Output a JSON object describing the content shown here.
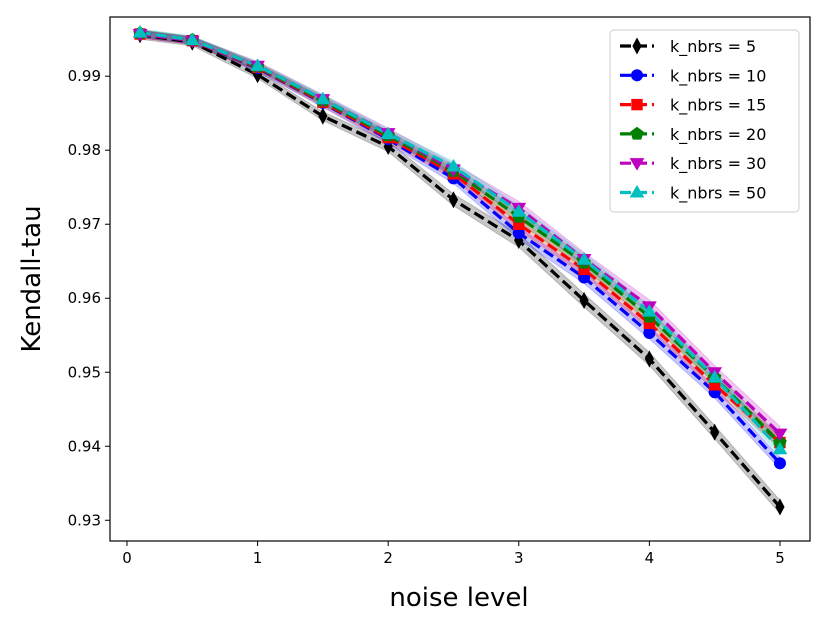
{
  "chart_data": {
    "type": "line",
    "title": "",
    "xlabel": "noise level",
    "ylabel": "Kendall-tau",
    "x": [
      0.1,
      0.5,
      1.0,
      1.5,
      2.0,
      2.5,
      3.0,
      3.5,
      4.0,
      4.5,
      5.0
    ],
    "xlim": [
      -0.13,
      5.23
    ],
    "ylim": [
      0.9272,
      0.998
    ],
    "xticks": [
      0,
      1,
      2,
      3,
      4,
      5
    ],
    "xtick_labels": [
      "0",
      "1",
      "2",
      "3",
      "4",
      "5"
    ],
    "yticks": [
      0.93,
      0.94,
      0.95,
      0.96,
      0.97,
      0.98,
      0.99
    ],
    "ytick_labels": [
      "0.93",
      "0.94",
      "0.95",
      "0.96",
      "0.97",
      "0.98",
      "0.99"
    ],
    "grid": false,
    "legend_position": "top-right",
    "series": [
      {
        "name": "k_nbrs = 5",
        "color": "#000000",
        "marker": "diamond",
        "values": [
          0.9956,
          0.9946,
          0.9902,
          0.9846,
          0.9805,
          0.9733,
          0.9678,
          0.9597,
          0.9518,
          0.9419,
          0.9318
        ],
        "band": [
          0.0006,
          0.0005,
          0.0005,
          0.0006,
          0.0007,
          0.0008,
          0.0009,
          0.0009,
          0.0009,
          0.0009,
          0.0009
        ]
      },
      {
        "name": "k_nbrs = 10",
        "color": "#0000ff",
        "marker": "circle",
        "values": [
          0.9957,
          0.9948,
          0.9911,
          0.9864,
          0.9815,
          0.9762,
          0.9688,
          0.9628,
          0.9553,
          0.9473,
          0.9377
        ],
        "band": [
          0.0005,
          0.0005,
          0.0005,
          0.0006,
          0.0006,
          0.0007,
          0.0008,
          0.0008,
          0.0008,
          0.0008,
          0.0008
        ]
      },
      {
        "name": "k_nbrs = 15",
        "color": "#ff0000",
        "marker": "square",
        "values": [
          0.9957,
          0.9948,
          0.9912,
          0.9865,
          0.9817,
          0.9768,
          0.97,
          0.9639,
          0.9566,
          0.9483,
          0.9405
        ],
        "band": [
          0.0005,
          0.0005,
          0.0005,
          0.0006,
          0.0006,
          0.0007,
          0.0008,
          0.0008,
          0.0008,
          0.0008,
          0.0008
        ]
      },
      {
        "name": "k_nbrs = 20",
        "color": "#008000",
        "marker": "pentagon",
        "values": [
          0.9958,
          0.9949,
          0.9913,
          0.9867,
          0.982,
          0.9772,
          0.971,
          0.9648,
          0.9575,
          0.9493,
          0.9405
        ],
        "band": [
          0.0005,
          0.0005,
          0.0005,
          0.0006,
          0.0006,
          0.0007,
          0.0008,
          0.0008,
          0.0008,
          0.0008,
          0.0008
        ]
      },
      {
        "name": "k_nbrs = 30",
        "color": "#bf00bf",
        "marker": "triangle-down",
        "values": [
          0.9957,
          0.9948,
          0.9914,
          0.9869,
          0.9823,
          0.9774,
          0.9722,
          0.9653,
          0.9589,
          0.95,
          0.9417
        ],
        "band": [
          0.0005,
          0.0005,
          0.0006,
          0.0006,
          0.0007,
          0.0008,
          0.0009,
          0.0009,
          0.0009,
          0.0009,
          0.001
        ]
      },
      {
        "name": "k_nbrs = 50",
        "color": "#00bfbf",
        "marker": "triangle-up",
        "values": [
          0.9959,
          0.9949,
          0.9914,
          0.9869,
          0.9822,
          0.9778,
          0.9717,
          0.9652,
          0.9582,
          0.9493,
          0.9396
        ],
        "band": [
          0.0005,
          0.0005,
          0.0005,
          0.0006,
          0.0006,
          0.0007,
          0.0008,
          0.0008,
          0.0008,
          0.0008,
          0.0008
        ]
      }
    ]
  }
}
